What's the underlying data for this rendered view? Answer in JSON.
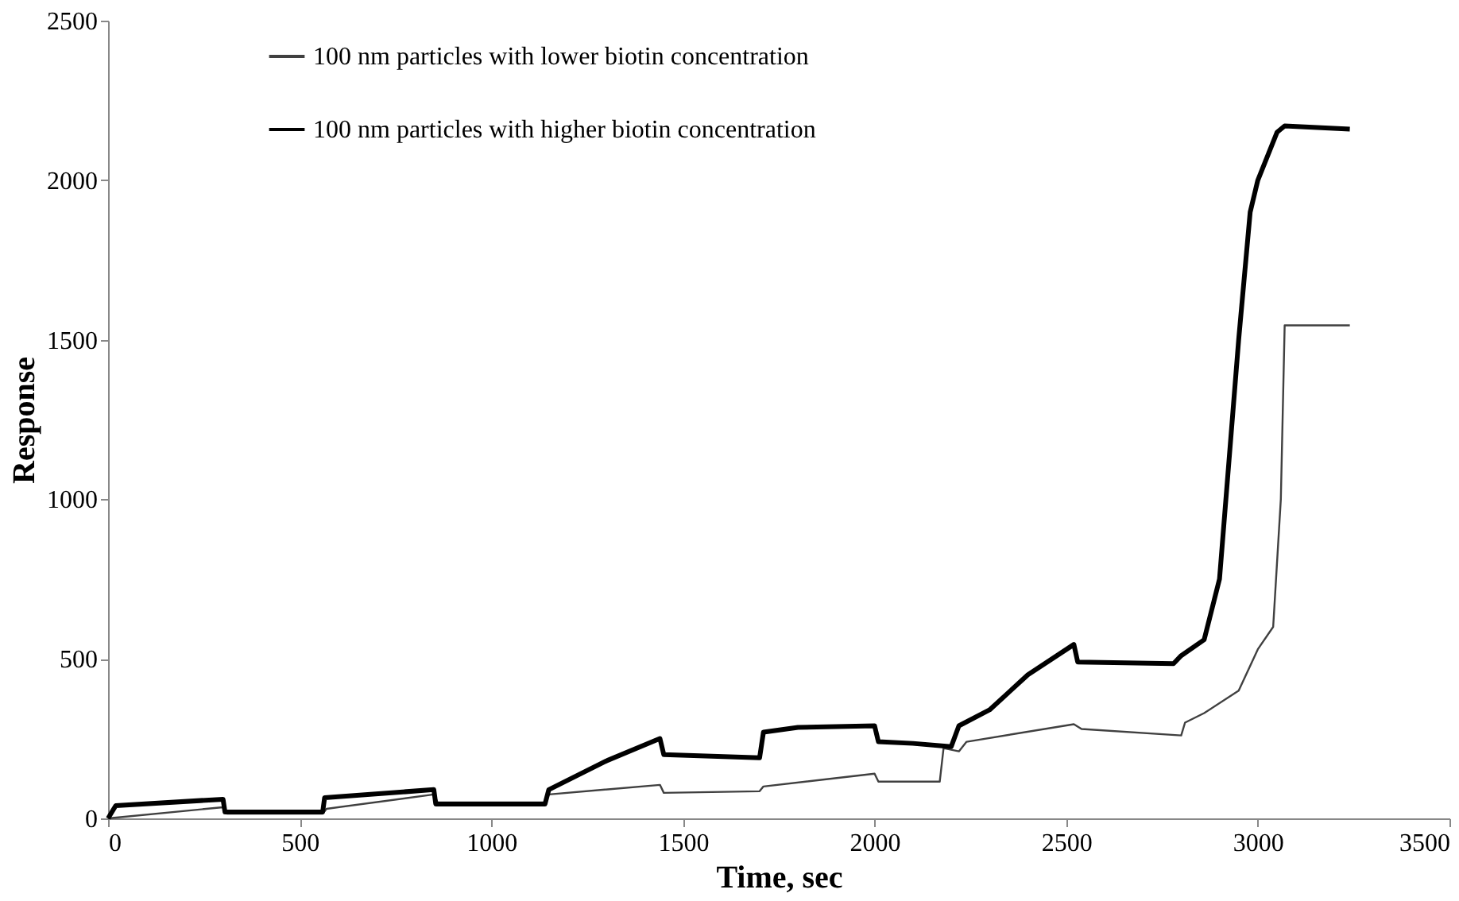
{
  "chart_data": {
    "type": "line",
    "xlabel": "Time, sec",
    "ylabel": "Response",
    "xlim": [
      0,
      3500
    ],
    "xticks": [
      0,
      500,
      1000,
      1500,
      2000,
      2500,
      3000,
      3500
    ],
    "ylim": [
      0,
      2500
    ],
    "yticks": [
      0,
      500,
      1000,
      1500,
      2000,
      2500
    ],
    "grid": false,
    "legend": "top left",
    "line_style": "solid",
    "series": [
      {
        "name": "100 nm particles with lower biotin concentration",
        "color": "#404040",
        "x": [
          0,
          300,
          310,
          560,
          570,
          850,
          860,
          1140,
          1150,
          1440,
          1450,
          1700,
          1710,
          2000,
          2010,
          2170,
          2180,
          2220,
          2240,
          2520,
          2540,
          2800,
          2810,
          2860,
          2950,
          3000,
          3040,
          3060,
          3070,
          3240
        ],
        "values": [
          0,
          35,
          15,
          15,
          30,
          75,
          50,
          50,
          75,
          105,
          80,
          85,
          100,
          140,
          115,
          115,
          220,
          210,
          240,
          295,
          280,
          260,
          300,
          330,
          400,
          530,
          600,
          1000,
          1545,
          1545
        ]
      },
      {
        "name": "100 nm particles with higher biotin concentration",
        "color": "#000000",
        "x": [
          0,
          20,
          300,
          305,
          560,
          565,
          850,
          855,
          1140,
          1150,
          1300,
          1440,
          1450,
          1700,
          1710,
          1800,
          2000,
          2010,
          2100,
          2200,
          2220,
          2300,
          2400,
          2520,
          2530,
          2780,
          2800,
          2860,
          2900,
          2950,
          2980,
          3000,
          3050,
          3070,
          3240
        ],
        "values": [
          0,
          40,
          60,
          20,
          20,
          65,
          90,
          45,
          45,
          90,
          180,
          250,
          200,
          190,
          270,
          285,
          290,
          240,
          235,
          225,
          290,
          340,
          450,
          545,
          490,
          485,
          510,
          560,
          750,
          1500,
          1900,
          2000,
          2150,
          2170,
          2160
        ]
      }
    ]
  }
}
